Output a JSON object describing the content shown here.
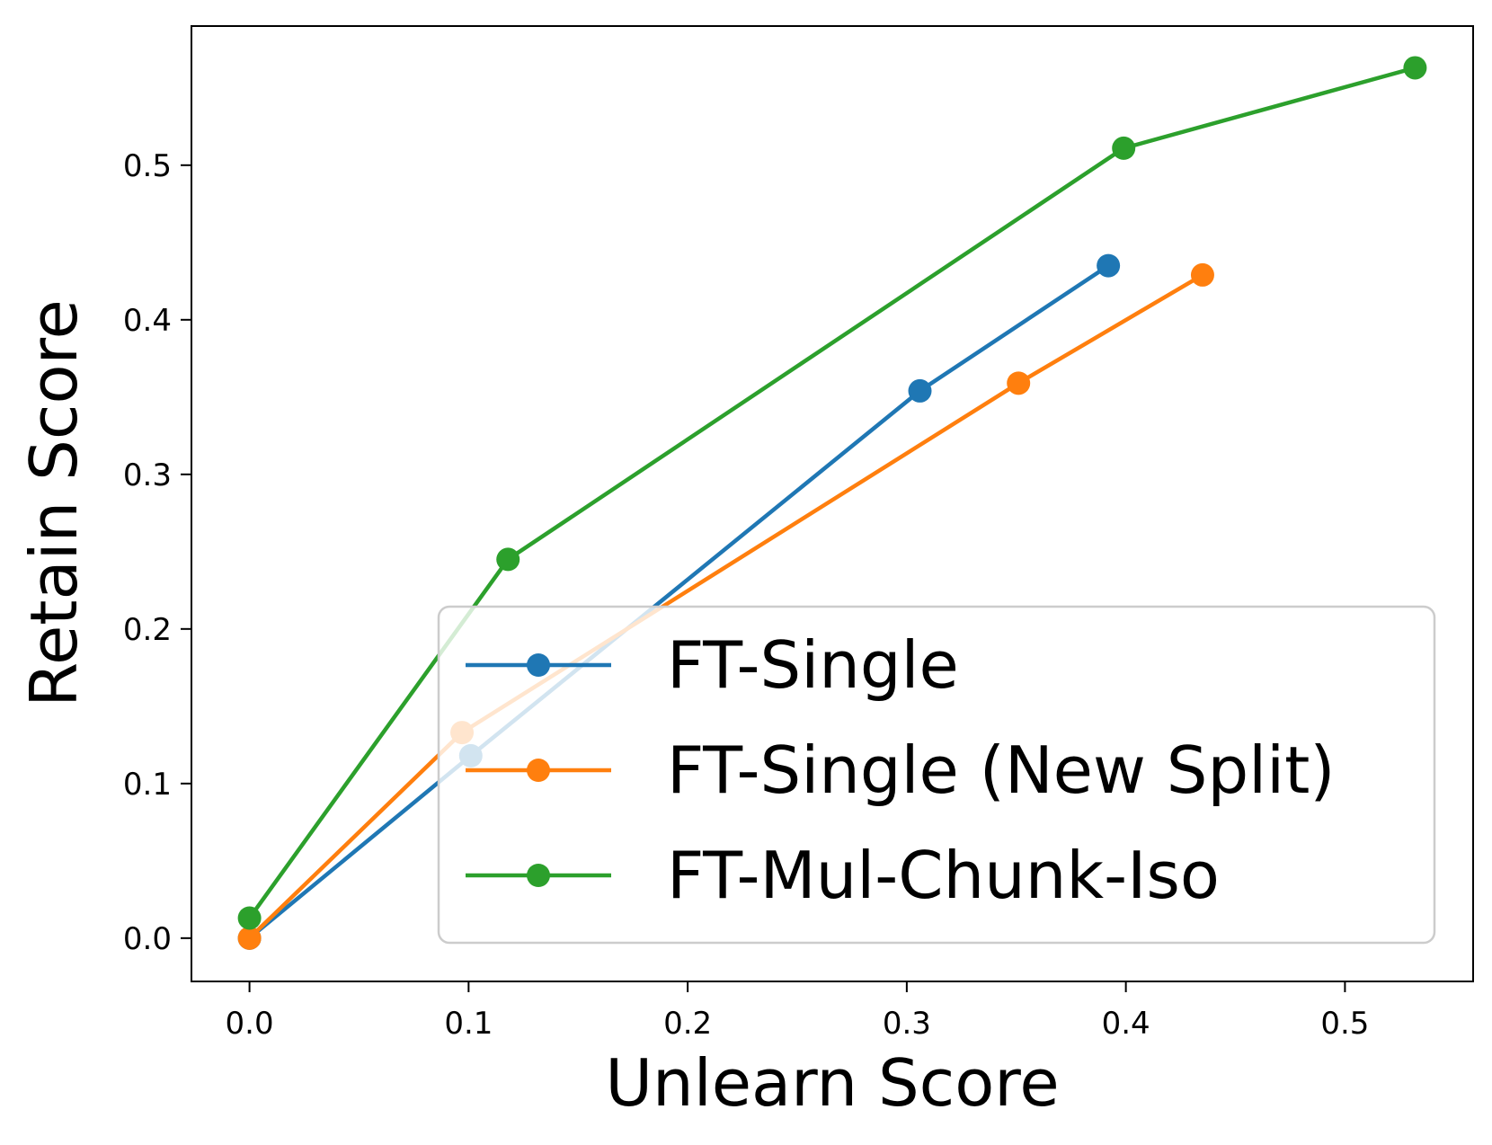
{
  "chart_data": {
    "type": "line",
    "title": "",
    "xlabel": "Unlearn Score",
    "ylabel": "Retain Score",
    "xlim": [
      -0.0265,
      0.5585
    ],
    "ylim": [
      -0.028,
      0.59
    ],
    "xticks": [
      0.0,
      0.1,
      0.2,
      0.3,
      0.4,
      0.5
    ],
    "yticks": [
      0.0,
      0.1,
      0.2,
      0.3,
      0.4,
      0.5
    ],
    "xtick_labels": [
      "0.0",
      "0.1",
      "0.2",
      "0.3",
      "0.4",
      "0.5"
    ],
    "ytick_labels": [
      "0.0",
      "0.1",
      "0.2",
      "0.3",
      "0.4",
      "0.5"
    ],
    "grid": false,
    "legend_position": "lower-right",
    "series": [
      {
        "name": "FT-Single",
        "color": "#1f77b4",
        "marker": "circle",
        "x": [
          0.0,
          0.101,
          0.306,
          0.392
        ],
        "y": [
          0.0,
          0.118,
          0.354,
          0.435
        ]
      },
      {
        "name": "FT-Single (New Split)",
        "color": "#ff7f0e",
        "marker": "circle",
        "x": [
          0.0,
          0.097,
          0.351,
          0.435
        ],
        "y": [
          0.0,
          0.133,
          0.359,
          0.429
        ]
      },
      {
        "name": "FT-Mul-Chunk-Iso",
        "color": "#2ca02c",
        "marker": "circle",
        "x": [
          0.0,
          0.118,
          0.399,
          0.532
        ],
        "y": [
          0.013,
          0.245,
          0.511,
          0.563
        ]
      }
    ]
  }
}
